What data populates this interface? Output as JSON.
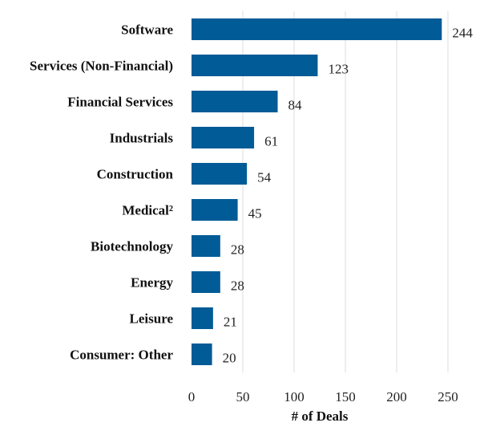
{
  "chart_data": {
    "type": "bar",
    "orientation": "horizontal",
    "categories": [
      "Software",
      "Services (Non-Financial)",
      "Financial Services",
      "Industrials",
      "Construction",
      "Medical²",
      "Biotechnology",
      "Energy",
      "Leisure",
      "Consumer: Other"
    ],
    "values": [
      244,
      123,
      84,
      61,
      54,
      45,
      28,
      28,
      21,
      20
    ],
    "xlabel": "# of Deals",
    "ylabel": "",
    "xlim": [
      0,
      250
    ],
    "xticks": [
      0,
      50,
      100,
      150,
      200,
      250
    ],
    "grid": true,
    "bar_color": "#005b96"
  }
}
